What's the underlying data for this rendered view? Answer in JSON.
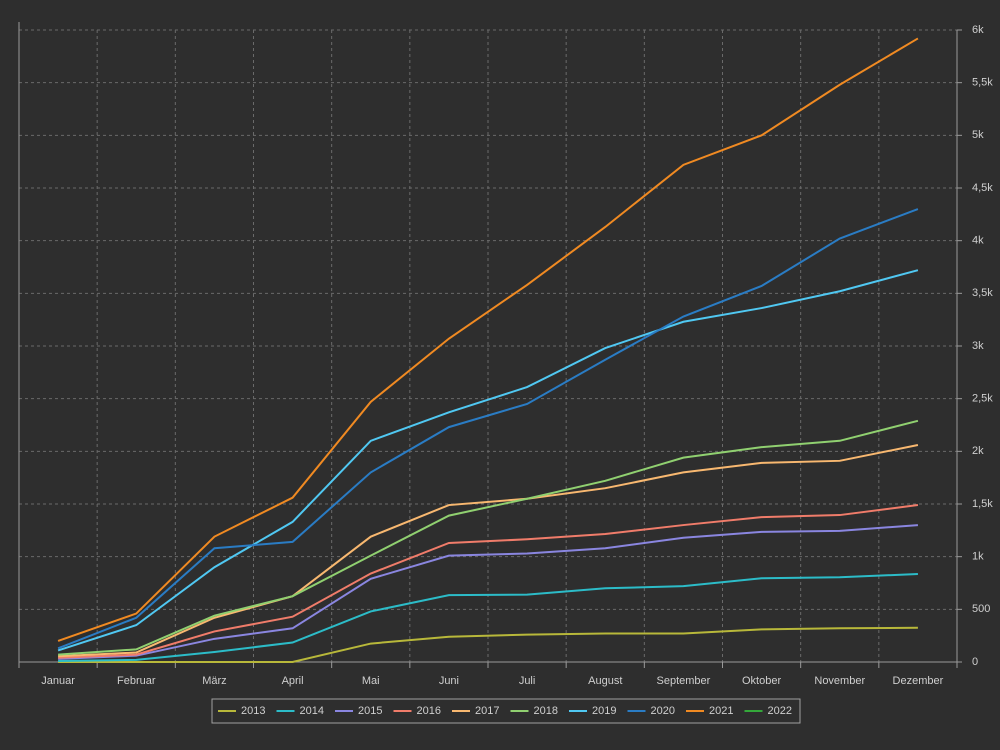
{
  "chart_data": {
    "type": "line",
    "categories": [
      "Januar",
      "Februar",
      "März",
      "April",
      "Mai",
      "Juni",
      "Juli",
      "August",
      "September",
      "Oktober",
      "November",
      "Dezember"
    ],
    "ylim": [
      0,
      6000
    ],
    "yticks": [
      0,
      500,
      {
        "value": 1000,
        "label": "1k"
      },
      {
        "value": 1500,
        "label": "1,5k"
      },
      {
        "value": 2000,
        "label": "2k"
      },
      {
        "value": 2500,
        "label": "2,5k"
      },
      {
        "value": 3000,
        "label": "3k"
      },
      {
        "value": 3500,
        "label": "3,5k"
      },
      {
        "value": 4000,
        "label": "4k"
      },
      {
        "value": 4500,
        "label": "4,5k"
      },
      {
        "value": 5000,
        "label": "5k"
      },
      {
        "value": 5500,
        "label": "5,5k"
      },
      {
        "value": 6000,
        "label": "6k"
      }
    ],
    "grid": true,
    "legend": "bottom",
    "series": [
      {
        "name": "2013",
        "color": "#b8b83a",
        "values": [
          0,
          0,
          0,
          0,
          175,
          240,
          260,
          270,
          270,
          310,
          320,
          325
        ]
      },
      {
        "name": "2014",
        "color": "#2cbcc8",
        "values": [
          10,
          20,
          95,
          185,
          480,
          635,
          640,
          700,
          720,
          795,
          805,
          835
        ]
      },
      {
        "name": "2015",
        "color": "#8a86e0",
        "values": [
          30,
          60,
          220,
          320,
          790,
          1010,
          1030,
          1080,
          1180,
          1235,
          1245,
          1300
        ]
      },
      {
        "name": "2016",
        "color": "#f07c6a",
        "values": [
          40,
          70,
          290,
          430,
          840,
          1130,
          1165,
          1215,
          1300,
          1375,
          1395,
          1490
        ]
      },
      {
        "name": "2017",
        "color": "#f8b870",
        "values": [
          55,
          90,
          420,
          625,
          1190,
          1490,
          1550,
          1650,
          1800,
          1890,
          1910,
          2060
        ]
      },
      {
        "name": "2018",
        "color": "#90d070",
        "values": [
          70,
          120,
          440,
          625,
          1010,
          1390,
          1550,
          1720,
          1940,
          2040,
          2100,
          2290
        ]
      },
      {
        "name": "2019",
        "color": "#50c8f2",
        "values": [
          110,
          350,
          900,
          1330,
          2100,
          2370,
          2610,
          2980,
          3230,
          3360,
          3520,
          3720
        ]
      },
      {
        "name": "2020",
        "color": "#2a7cc4",
        "values": [
          130,
          420,
          1080,
          1140,
          1800,
          2230,
          2450,
          2870,
          3280,
          3570,
          4020,
          4300
        ]
      },
      {
        "name": "2021",
        "color": "#f08a22",
        "values": [
          200,
          460,
          1190,
          1560,
          2470,
          3070,
          3580,
          4130,
          4720,
          5000,
          5480,
          5920
        ]
      },
      {
        "name": "2022",
        "color": "#34a83a",
        "values": [
          null,
          null,
          null,
          null,
          null,
          null,
          null,
          null,
          null,
          null,
          null,
          null
        ]
      }
    ]
  }
}
